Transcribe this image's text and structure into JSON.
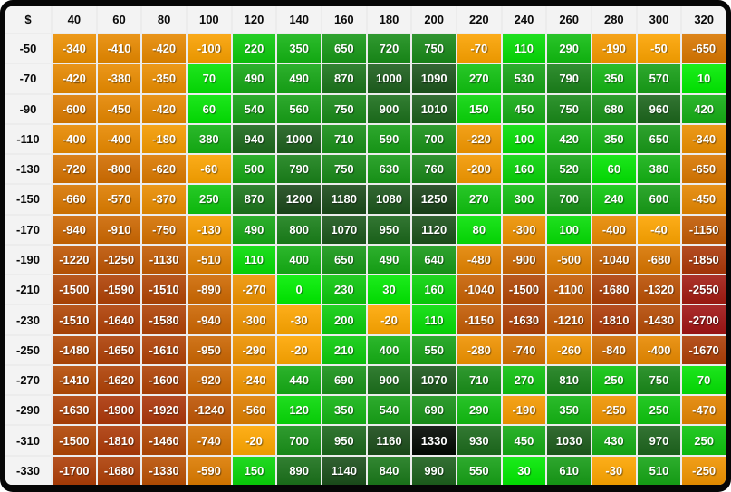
{
  "chart_data": {
    "type": "heatmap",
    "title": "",
    "corner_label": "$",
    "columns": [
      40,
      60,
      80,
      100,
      120,
      140,
      160,
      180,
      200,
      220,
      240,
      260,
      280,
      300,
      320
    ],
    "rows": [
      -50,
      -70,
      -90,
      -110,
      -130,
      -150,
      -170,
      -190,
      -210,
      -230,
      -250,
      -270,
      -290,
      -310,
      -330
    ],
    "values": [
      [
        -340,
        -410,
        -420,
        -100,
        220,
        350,
        650,
        720,
        750,
        -70,
        110,
        290,
        -190,
        -50,
        -650
      ],
      [
        -420,
        -380,
        -350,
        70,
        490,
        490,
        870,
        1000,
        1090,
        270,
        530,
        790,
        350,
        570,
        10
      ],
      [
        -600,
        -450,
        -420,
        60,
        540,
        560,
        750,
        900,
        1010,
        150,
        450,
        750,
        680,
        960,
        420
      ],
      [
        -400,
        -400,
        -180,
        380,
        940,
        1000,
        710,
        590,
        700,
        -220,
        100,
        420,
        350,
        650,
        -340
      ],
      [
        -720,
        -800,
        -620,
        -60,
        500,
        790,
        750,
        630,
        760,
        -200,
        160,
        520,
        60,
        380,
        -650
      ],
      [
        -660,
        -570,
        -370,
        250,
        870,
        1200,
        1180,
        1080,
        1250,
        270,
        300,
        700,
        240,
        600,
        -450
      ],
      [
        -940,
        -910,
        -750,
        -130,
        490,
        800,
        1070,
        950,
        1120,
        80,
        -300,
        100,
        -400,
        -40,
        -1150
      ],
      [
        -1220,
        -1250,
        -1130,
        -510,
        110,
        400,
        650,
        490,
        640,
        -480,
        -900,
        -500,
        -1040,
        -680,
        -1850
      ],
      [
        -1500,
        -1590,
        -1510,
        -890,
        -270,
        0,
        230,
        30,
        160,
        -1040,
        -1500,
        -1100,
        -1680,
        -1320,
        -2550
      ],
      [
        -1510,
        -1640,
        -1580,
        -940,
        -300,
        -30,
        200,
        -20,
        110,
        -1150,
        -1630,
        -1210,
        -1810,
        -1430,
        -2700
      ],
      [
        -1480,
        -1650,
        -1610,
        -950,
        -290,
        -20,
        210,
        400,
        550,
        -280,
        -740,
        -260,
        -840,
        -400,
        -1670
      ],
      [
        -1410,
        -1620,
        -1600,
        -920,
        -240,
        440,
        690,
        900,
        1070,
        710,
        270,
        810,
        250,
        750,
        70
      ],
      [
        -1630,
        -1900,
        -1920,
        -1240,
        -560,
        120,
        350,
        540,
        690,
        290,
        -190,
        350,
        -250,
        250,
        -470
      ],
      [
        -1500,
        -1810,
        -1460,
        -740,
        -20,
        700,
        950,
        1160,
        1330,
        930,
        450,
        1030,
        430,
        970,
        250
      ],
      [
        -1700,
        -1680,
        -1330,
        -590,
        150,
        890,
        1140,
        840,
        990,
        550,
        30,
        610,
        -30,
        510,
        -250
      ]
    ],
    "value_range": [
      -2700,
      1330
    ],
    "scale": {
      "positive_max": 1330,
      "negative_min": -2700,
      "positive_stops": [
        {
          "pos": 0.0,
          "color": "#00ee00"
        },
        {
          "pos": 0.26,
          "color": "#14b414"
        },
        {
          "pos": 0.49,
          "color": "#189818"
        },
        {
          "pos": 0.75,
          "color": "#1d5f1d"
        },
        {
          "pos": 0.94,
          "color": "#1a4219"
        },
        {
          "pos": 1.0,
          "color": "#020802"
        }
      ],
      "negative_stops": [
        {
          "pos": 0.0,
          "color": "#ffa700"
        },
        {
          "pos": 0.24,
          "color": "#d97700"
        },
        {
          "pos": 0.43,
          "color": "#c25a04"
        },
        {
          "pos": 0.56,
          "color": "#b04505"
        },
        {
          "pos": 0.72,
          "color": "#ab350a"
        },
        {
          "pos": 1.0,
          "color": "#a01414"
        }
      ]
    },
    "colors": {
      "frame": "#060606",
      "header_bg": "#f3f3f3",
      "header_text": "#0a0a0a",
      "cell_text": "#ffffff",
      "grid_line": "#ececec"
    },
    "layout": {
      "grid_on": true,
      "legend": "none",
      "xlabel": "",
      "ylabel": ""
    }
  }
}
